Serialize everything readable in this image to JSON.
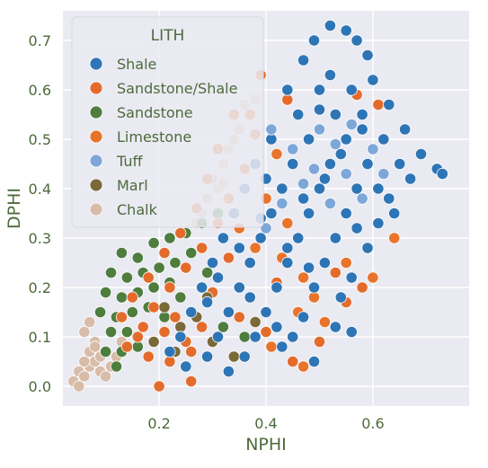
{
  "chart_data": {
    "type": "scatter",
    "xlabel": "NPHI",
    "ylabel": "DPHI",
    "xlim": [
      0.02,
      0.78
    ],
    "ylim": [
      -0.04,
      0.76
    ],
    "xticks": [
      0.2,
      0.4,
      0.6
    ],
    "yticks": [
      0.0,
      0.1,
      0.2,
      0.3,
      0.4,
      0.5,
      0.6,
      0.7
    ],
    "grid": true,
    "legend": {
      "title": "LITH",
      "placement": "top-left"
    },
    "style": {
      "background": "#eaeaf2",
      "grid_color": "#ffffff",
      "text_color": "#4d6a3b",
      "marker_edge": "#ffffff"
    },
    "series": [
      {
        "name": "Shale",
        "color": "#2e75b6",
        "points": [
          [
            0.52,
            0.73
          ],
          [
            0.55,
            0.72
          ],
          [
            0.57,
            0.7
          ],
          [
            0.49,
            0.7
          ],
          [
            0.59,
            0.67
          ],
          [
            0.47,
            0.66
          ],
          [
            0.6,
            0.62
          ],
          [
            0.52,
            0.63
          ],
          [
            0.44,
            0.6
          ],
          [
            0.5,
            0.6
          ],
          [
            0.56,
            0.6
          ],
          [
            0.63,
            0.57
          ],
          [
            0.66,
            0.52
          ],
          [
            0.69,
            0.47
          ],
          [
            0.72,
            0.44
          ],
          [
            0.73,
            0.43
          ],
          [
            0.46,
            0.55
          ],
          [
            0.53,
            0.55
          ],
          [
            0.58,
            0.55
          ],
          [
            0.41,
            0.5
          ],
          [
            0.48,
            0.5
          ],
          [
            0.55,
            0.5
          ],
          [
            0.62,
            0.5
          ],
          [
            0.38,
            0.45
          ],
          [
            0.45,
            0.45
          ],
          [
            0.52,
            0.45
          ],
          [
            0.59,
            0.45
          ],
          [
            0.65,
            0.45
          ],
          [
            0.36,
            0.4
          ],
          [
            0.43,
            0.4
          ],
          [
            0.5,
            0.4
          ],
          [
            0.57,
            0.4
          ],
          [
            0.63,
            0.38
          ],
          [
            0.34,
            0.35
          ],
          [
            0.41,
            0.35
          ],
          [
            0.48,
            0.35
          ],
          [
            0.55,
            0.35
          ],
          [
            0.61,
            0.33
          ],
          [
            0.32,
            0.3
          ],
          [
            0.39,
            0.3
          ],
          [
            0.46,
            0.3
          ],
          [
            0.53,
            0.3
          ],
          [
            0.59,
            0.28
          ],
          [
            0.3,
            0.25
          ],
          [
            0.37,
            0.25
          ],
          [
            0.44,
            0.25
          ],
          [
            0.51,
            0.25
          ],
          [
            0.56,
            0.22
          ],
          [
            0.28,
            0.2
          ],
          [
            0.35,
            0.2
          ],
          [
            0.42,
            0.2
          ],
          [
            0.49,
            0.2
          ],
          [
            0.54,
            0.18
          ],
          [
            0.26,
            0.15
          ],
          [
            0.33,
            0.15
          ],
          [
            0.4,
            0.15
          ],
          [
            0.47,
            0.14
          ],
          [
            0.24,
            0.1
          ],
          [
            0.31,
            0.1
          ],
          [
            0.38,
            0.1
          ],
          [
            0.45,
            0.1
          ],
          [
            0.56,
            0.11
          ],
          [
            0.22,
            0.07
          ],
          [
            0.29,
            0.06
          ],
          [
            0.36,
            0.06
          ],
          [
            0.49,
            0.05
          ],
          [
            0.25,
            0.04
          ],
          [
            0.33,
            0.03
          ],
          [
            0.42,
            0.12
          ],
          [
            0.37,
            0.18
          ],
          [
            0.31,
            0.22
          ],
          [
            0.44,
            0.28
          ],
          [
            0.39,
            0.34
          ],
          [
            0.47,
            0.38
          ],
          [
            0.51,
            0.42
          ],
          [
            0.54,
            0.47
          ],
          [
            0.58,
            0.52
          ],
          [
            0.5,
            0.56
          ],
          [
            0.61,
            0.4
          ],
          [
            0.64,
            0.35
          ],
          [
            0.67,
            0.42
          ],
          [
            0.4,
            0.42
          ],
          [
            0.35,
            0.28
          ],
          [
            0.29,
            0.17
          ],
          [
            0.43,
            0.08
          ],
          [
            0.53,
            0.12
          ],
          [
            0.48,
            0.24
          ],
          [
            0.57,
            0.32
          ]
        ]
      },
      {
        "name": "Sandstone/Shale",
        "color": "#e36c2c",
        "points": [
          [
            0.39,
            0.63
          ],
          [
            0.44,
            0.58
          ],
          [
            0.57,
            0.59
          ],
          [
            0.61,
            0.57
          ],
          [
            0.34,
            0.55
          ],
          [
            0.38,
            0.51
          ],
          [
            0.31,
            0.48
          ],
          [
            0.36,
            0.44
          ],
          [
            0.29,
            0.42
          ],
          [
            0.33,
            0.38
          ],
          [
            0.27,
            0.36
          ],
          [
            0.31,
            0.33
          ],
          [
            0.24,
            0.31
          ],
          [
            0.28,
            0.28
          ],
          [
            0.21,
            0.27
          ],
          [
            0.25,
            0.24
          ],
          [
            0.18,
            0.22
          ],
          [
            0.22,
            0.2
          ],
          [
            0.15,
            0.18
          ],
          [
            0.19,
            0.16
          ],
          [
            0.13,
            0.14
          ],
          [
            0.17,
            0.12
          ],
          [
            0.21,
            0.11
          ],
          [
            0.25,
            0.09
          ],
          [
            0.14,
            0.08
          ],
          [
            0.18,
            0.06
          ],
          [
            0.22,
            0.05
          ],
          [
            0.26,
            0.07
          ],
          [
            0.2,
            0.0
          ],
          [
            0.26,
            0.01
          ],
          [
            0.35,
            0.14
          ],
          [
            0.4,
            0.11
          ],
          [
            0.45,
            0.05
          ],
          [
            0.5,
            0.09
          ],
          [
            0.53,
            0.23
          ],
          [
            0.55,
            0.17
          ],
          [
            0.58,
            0.2
          ],
          [
            0.42,
            0.21
          ],
          [
            0.3,
            0.19
          ],
          [
            0.23,
            0.14
          ],
          [
            0.16,
            0.1
          ],
          [
            0.28,
            0.12
          ],
          [
            0.33,
            0.26
          ]
        ]
      },
      {
        "name": "Sandstone",
        "color": "#4e7d3e",
        "points": [
          [
            0.13,
            0.27
          ],
          [
            0.16,
            0.26
          ],
          [
            0.19,
            0.29
          ],
          [
            0.22,
            0.3
          ],
          [
            0.25,
            0.31
          ],
          [
            0.28,
            0.33
          ],
          [
            0.31,
            0.35
          ],
          [
            0.11,
            0.23
          ],
          [
            0.14,
            0.22
          ],
          [
            0.17,
            0.23
          ],
          [
            0.2,
            0.24
          ],
          [
            0.23,
            0.25
          ],
          [
            0.26,
            0.27
          ],
          [
            0.1,
            0.19
          ],
          [
            0.13,
            0.18
          ],
          [
            0.16,
            0.19
          ],
          [
            0.19,
            0.2
          ],
          [
            0.22,
            0.21
          ],
          [
            0.09,
            0.15
          ],
          [
            0.12,
            0.14
          ],
          [
            0.15,
            0.15
          ],
          [
            0.18,
            0.16
          ],
          [
            0.11,
            0.11
          ],
          [
            0.14,
            0.11
          ],
          [
            0.17,
            0.12
          ],
          [
            0.1,
            0.07
          ],
          [
            0.13,
            0.07
          ],
          [
            0.16,
            0.08
          ],
          [
            0.12,
            0.04
          ],
          [
            0.29,
            0.23
          ],
          [
            0.24,
            0.18
          ],
          [
            0.21,
            0.14
          ],
          [
            0.32,
            0.12
          ],
          [
            0.36,
            0.1
          ]
        ]
      },
      {
        "name": "Limestone",
        "color": "#e8742c",
        "points": [
          [
            0.37,
            0.55
          ],
          [
            0.42,
            0.47
          ],
          [
            0.4,
            0.38
          ],
          [
            0.35,
            0.32
          ],
          [
            0.44,
            0.33
          ],
          [
            0.38,
            0.28
          ],
          [
            0.43,
            0.26
          ],
          [
            0.47,
            0.22
          ],
          [
            0.49,
            0.18
          ],
          [
            0.46,
            0.15
          ],
          [
            0.51,
            0.13
          ],
          [
            0.55,
            0.25
          ],
          [
            0.6,
            0.22
          ],
          [
            0.64,
            0.3
          ],
          [
            0.41,
            0.08
          ],
          [
            0.47,
            0.04
          ]
        ]
      },
      {
        "name": "Tuff",
        "color": "#7ea7d8",
        "points": [
          [
            0.41,
            0.52
          ],
          [
            0.45,
            0.48
          ],
          [
            0.49,
            0.44
          ],
          [
            0.53,
            0.49
          ],
          [
            0.55,
            0.43
          ],
          [
            0.58,
            0.38
          ],
          [
            0.47,
            0.41
          ],
          [
            0.52,
            0.37
          ],
          [
            0.56,
            0.53
          ],
          [
            0.6,
            0.48
          ],
          [
            0.5,
            0.52
          ],
          [
            0.43,
            0.37
          ],
          [
            0.4,
            0.32
          ],
          [
            0.62,
            0.43
          ]
        ]
      },
      {
        "name": "Marl",
        "color": "#7a6a3a",
        "points": [
          [
            0.21,
            0.16
          ],
          [
            0.24,
            0.12
          ],
          [
            0.27,
            0.14
          ],
          [
            0.3,
            0.09
          ],
          [
            0.34,
            0.06
          ],
          [
            0.38,
            0.13
          ],
          [
            0.19,
            0.09
          ],
          [
            0.23,
            0.07
          ],
          [
            0.29,
            0.18
          ]
        ]
      },
      {
        "name": "Chalk",
        "color": "#d7bca8",
        "points": [
          [
            0.04,
            0.01
          ],
          [
            0.05,
            0.03
          ],
          [
            0.06,
            0.02
          ],
          [
            0.07,
            0.04
          ],
          [
            0.08,
            0.05
          ],
          [
            0.09,
            0.06
          ],
          [
            0.05,
            0.0
          ],
          [
            0.06,
            0.05
          ],
          [
            0.07,
            0.07
          ],
          [
            0.08,
            0.09
          ],
          [
            0.09,
            0.03
          ],
          [
            0.1,
            0.02
          ],
          [
            0.11,
            0.04
          ],
          [
            0.12,
            0.06
          ],
          [
            0.06,
            0.11
          ],
          [
            0.07,
            0.13
          ],
          [
            0.08,
            0.08
          ],
          [
            0.1,
            0.07
          ],
          [
            0.13,
            0.09
          ],
          [
            0.3,
            0.42
          ],
          [
            0.32,
            0.45
          ],
          [
            0.35,
            0.52
          ],
          [
            0.29,
            0.38
          ],
          [
            0.31,
            0.4
          ],
          [
            0.28,
            0.35
          ],
          [
            0.33,
            0.48
          ],
          [
            0.27,
            0.33
          ],
          [
            0.34,
            0.5
          ],
          [
            0.36,
            0.57
          ],
          [
            0.38,
            0.58
          ],
          [
            0.32,
            0.41
          ]
        ]
      }
    ]
  }
}
